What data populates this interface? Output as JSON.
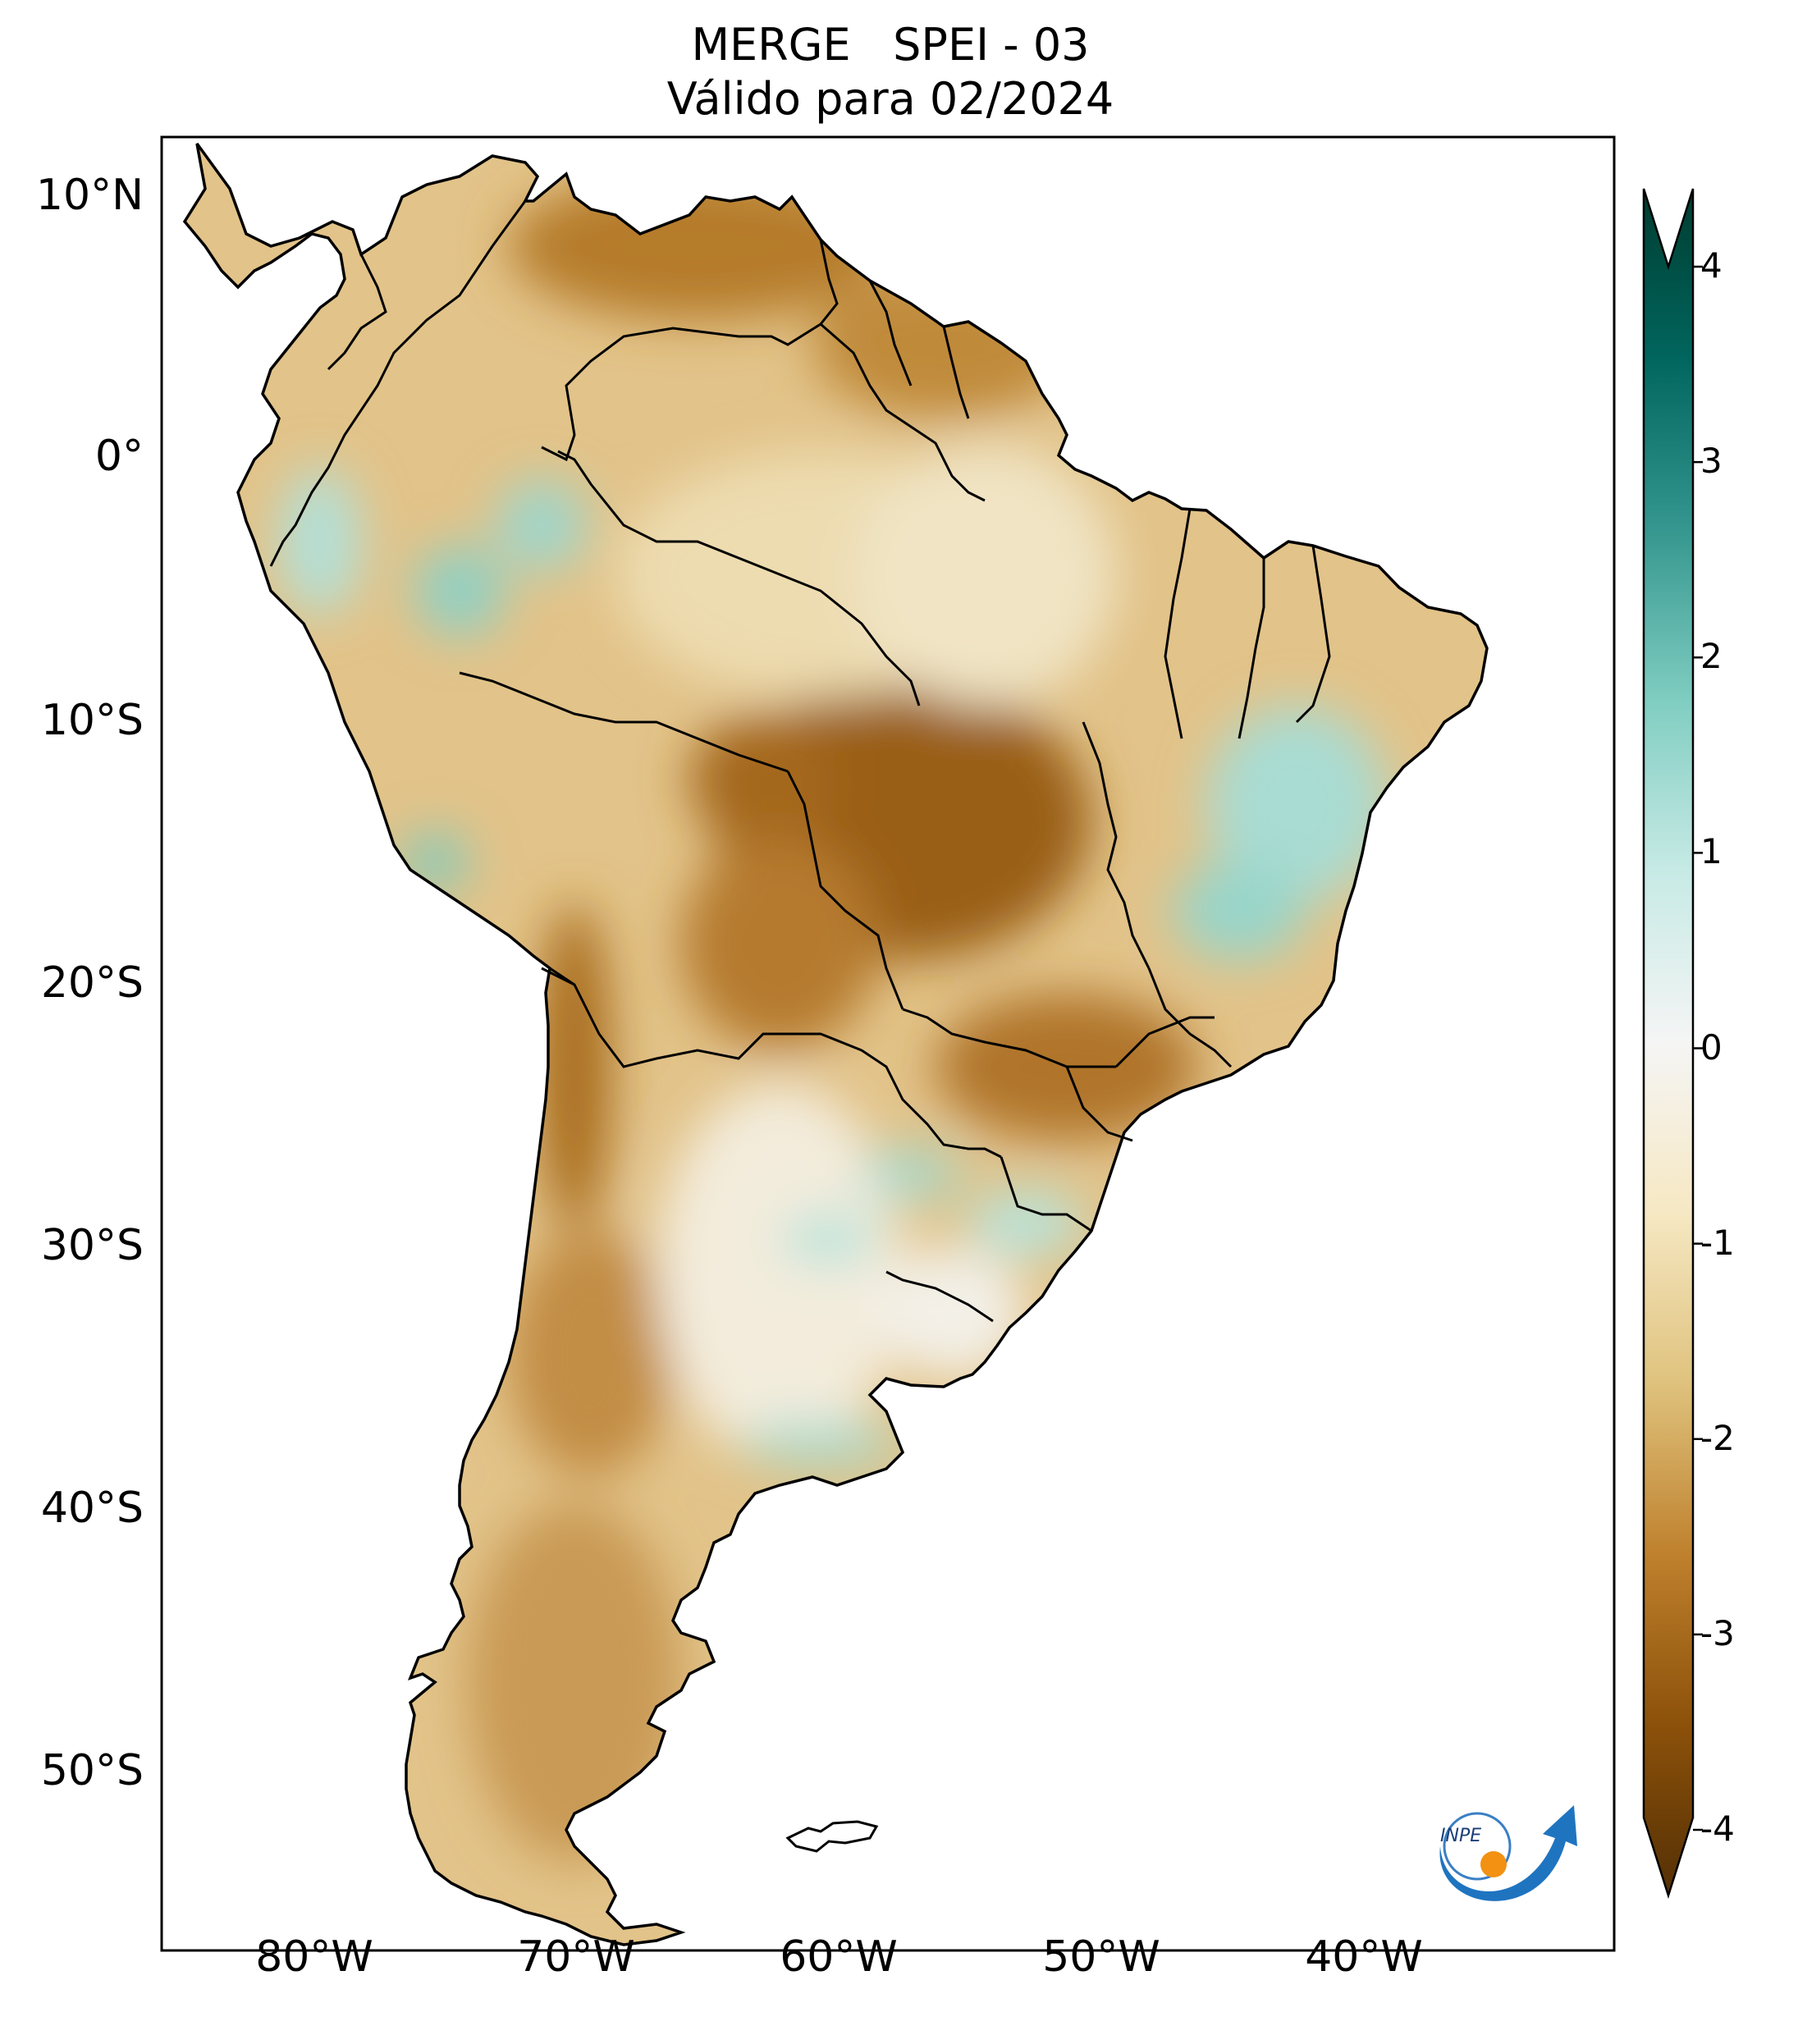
{
  "title": {
    "line1": "MERGE   SPEI - 03",
    "line2": "Válido para 02/2024"
  },
  "map": {
    "lat_labels": [
      "10°N",
      "0°",
      "10°S",
      "20°S",
      "30°S",
      "40°S",
      "50°S"
    ],
    "lon_labels": [
      "80°W",
      "70°W",
      "60°W",
      "50°W",
      "40°W"
    ],
    "extent": {
      "lon_min": -86,
      "lon_max": -30,
      "lat_min": -56.5,
      "lat_max": 13
    }
  },
  "colorbar": {
    "ticks": [
      "4",
      "3",
      "2",
      "1",
      "0",
      "-1",
      "-2",
      "-3",
      "-4"
    ],
    "range": [
      -4,
      4
    ],
    "colormap": "BrBG",
    "colors": {
      "darkest_brown": "#543005",
      "brown": "#8c510a",
      "tan": "#bf812d",
      "light_tan": "#dfc27d",
      "pale": "#f6e8c3",
      "neutral": "#f5f5f5",
      "pale_teal": "#c7eae5",
      "teal": "#80cdc1",
      "mid_teal": "#35978f",
      "dark_teal": "#01665e",
      "darkest_teal": "#003c30"
    }
  },
  "logo": {
    "text": "INPE"
  }
}
